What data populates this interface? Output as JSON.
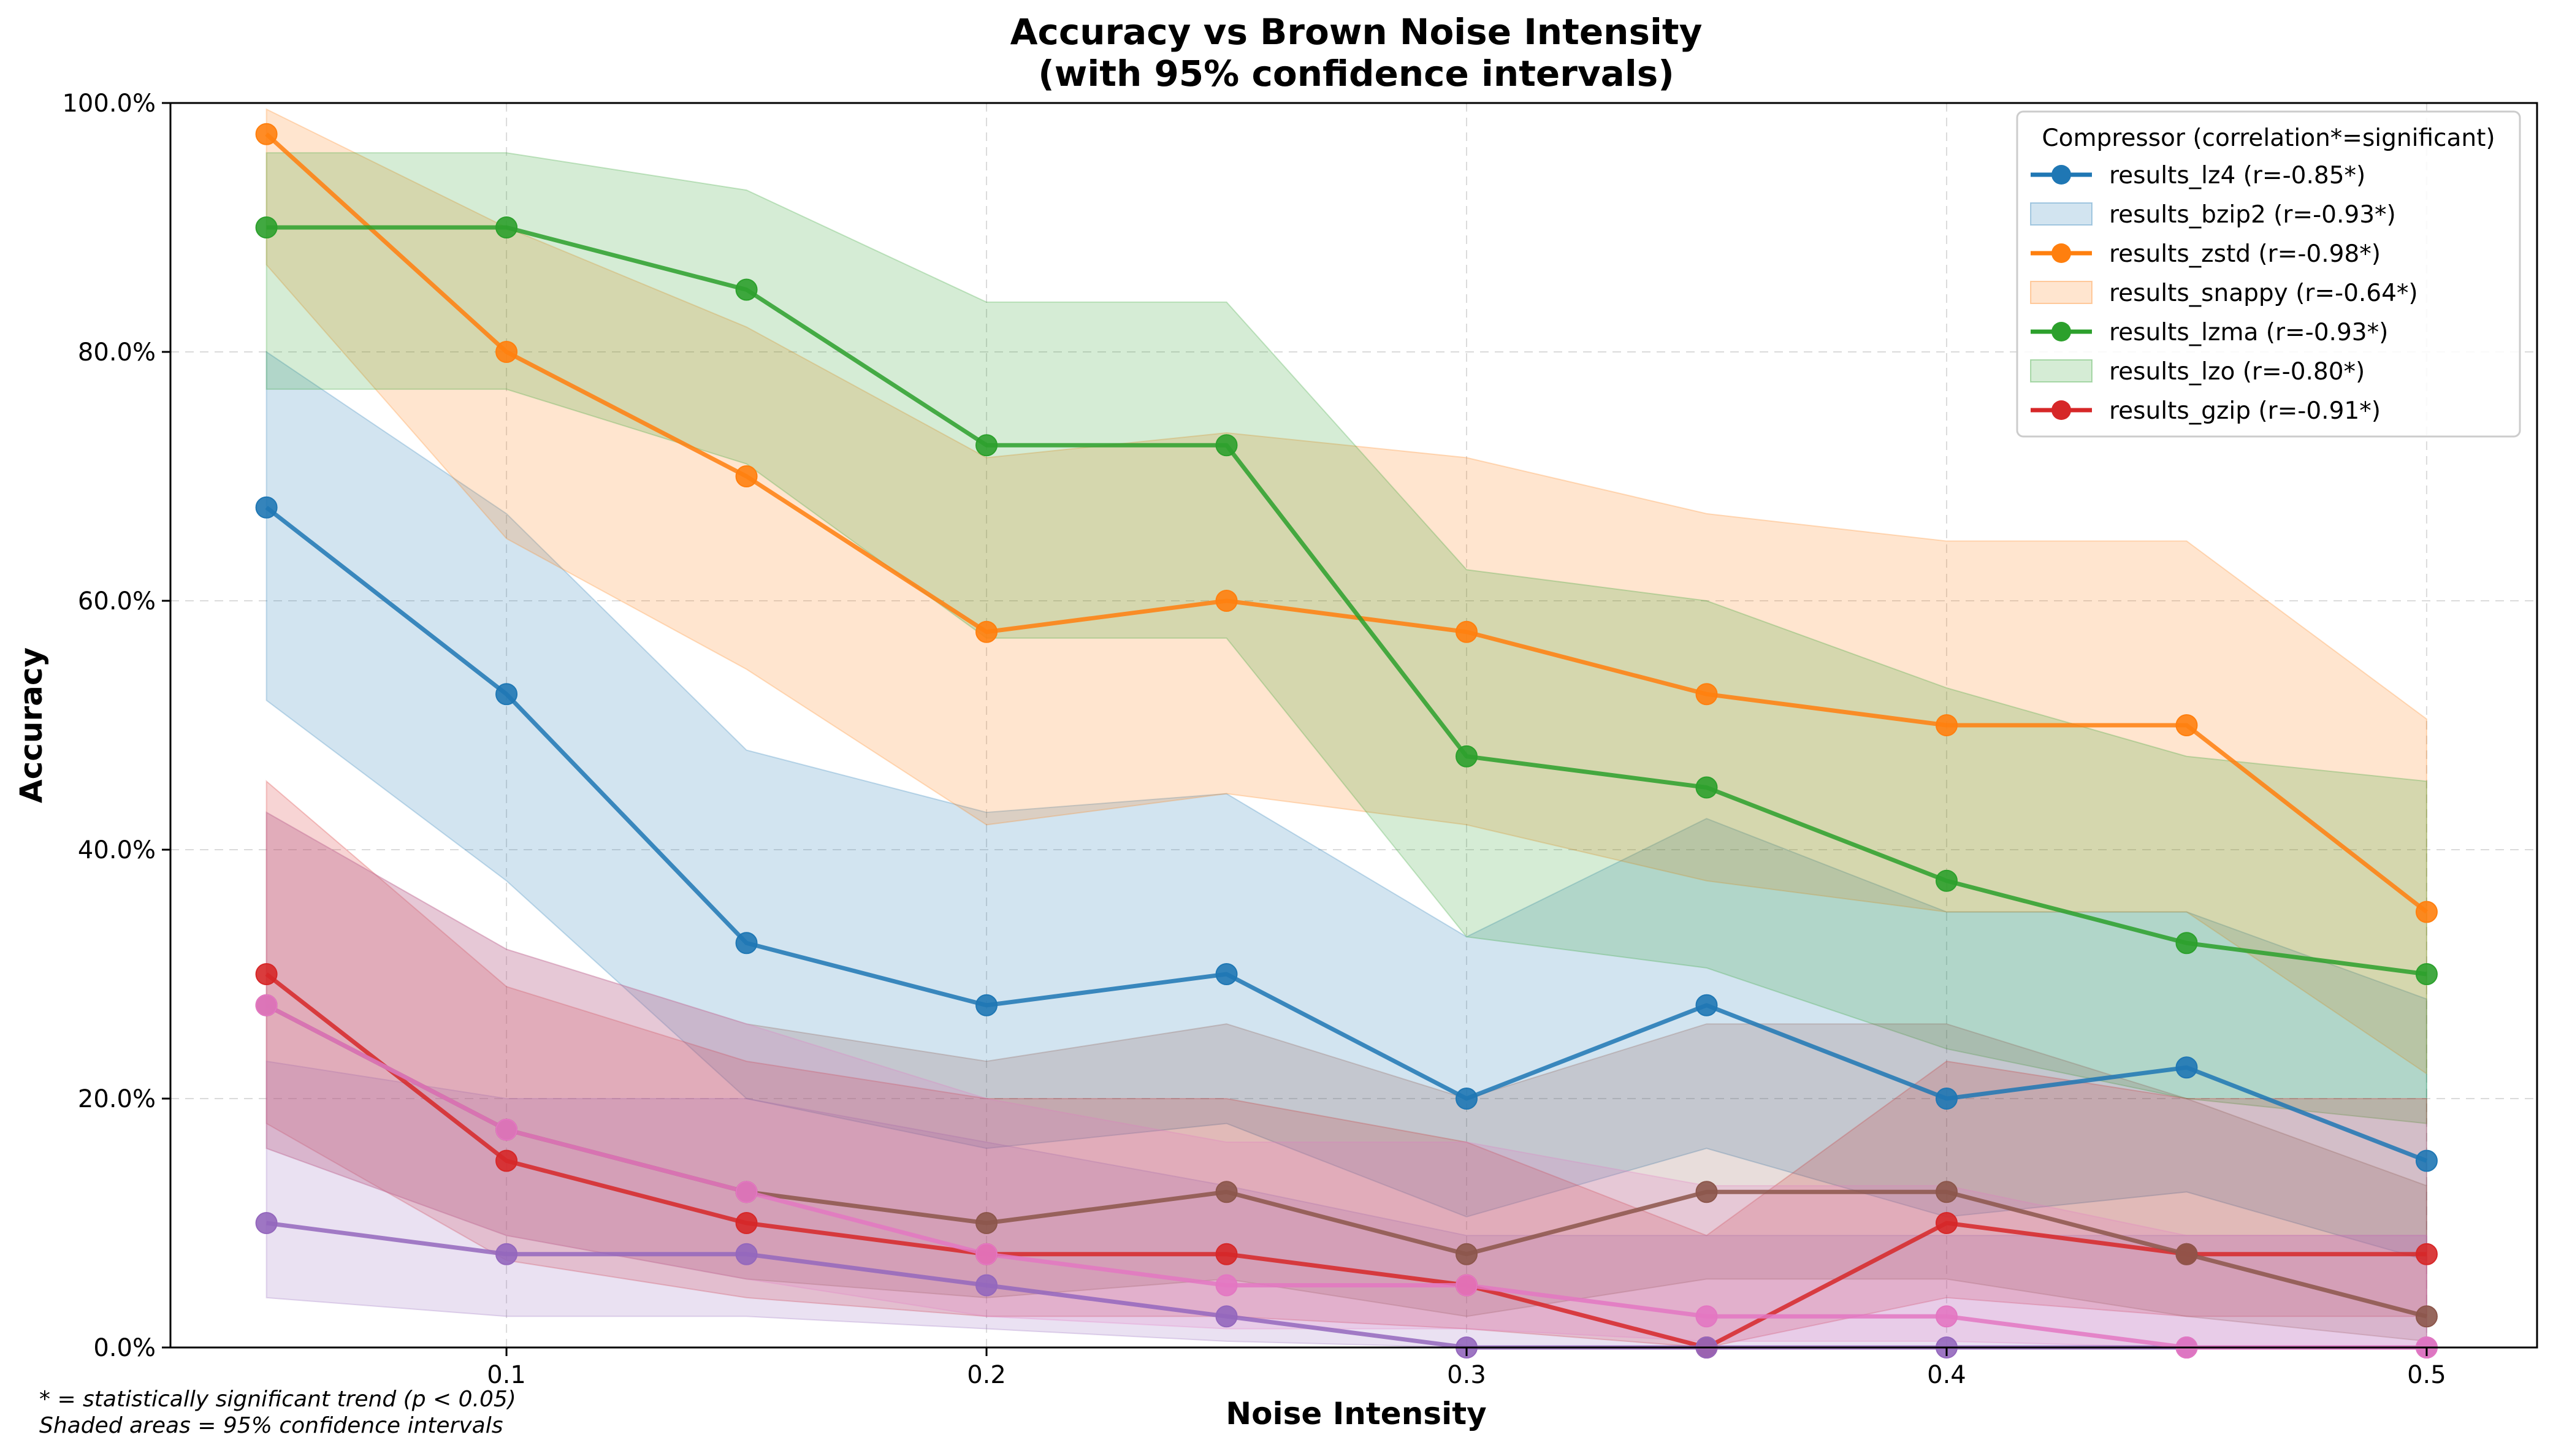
{
  "chart_data": {
    "type": "line",
    "title": "Accuracy vs Brown Noise Intensity",
    "subtitle": "(with 95% confidence intervals)",
    "xlabel": "Noise Intensity",
    "ylabel": "Accuracy",
    "xlim": [
      0.03,
      0.523
    ],
    "ylim": [
      0,
      100
    ],
    "x_ticks": [
      0.1,
      0.2,
      0.3,
      0.4,
      0.5
    ],
    "x_tick_labels": [
      "0.1",
      "0.2",
      "0.3",
      "0.4",
      "0.5"
    ],
    "y_ticks": [
      0,
      20,
      40,
      60,
      80,
      100
    ],
    "y_tick_labels": [
      "0.0%",
      "20.0%",
      "40.0%",
      "60.0%",
      "80.0%",
      "100.0%"
    ],
    "grid": true,
    "legend_placement": "top-right",
    "legend_title": "Compressor (correlation*=significant)",
    "x": [
      0.05,
      0.1,
      0.15,
      0.2,
      0.25,
      0.3,
      0.35,
      0.4,
      0.45,
      0.5
    ],
    "series": [
      {
        "color": "#1f77b4",
        "values": [
          67.5,
          52.5,
          32.5,
          27.5,
          30,
          20,
          27.5,
          20,
          22.5,
          15
        ],
        "ci_low": [
          52,
          37.5,
          20,
          16,
          18,
          10.5,
          16,
          10.5,
          12.5,
          7
        ],
        "ci_high": [
          80,
          67,
          48,
          43,
          44.5,
          33,
          42.5,
          35,
          35,
          28
        ],
        "line_legend": "results_lz4 (r=-0.85*)"
      },
      {
        "color": "#ff7f0e",
        "values": [
          97.5,
          80,
          70,
          57.5,
          60,
          57.5,
          52.5,
          50,
          50,
          35
        ],
        "ci_low": [
          87,
          65,
          54.5,
          42,
          44.5,
          42,
          37.5,
          35,
          35,
          22
        ],
        "ci_high": [
          99.5,
          90,
          82,
          71.5,
          73.5,
          71.5,
          67,
          64.8,
          64.8,
          50.5
        ],
        "line_legend": "results_zstd (r=-0.98*)"
      },
      {
        "color": "#2ca02c",
        "values": [
          90,
          90,
          85,
          72.5,
          72.5,
          47.5,
          45,
          37.5,
          32.5,
          30
        ],
        "ci_low": [
          77,
          77,
          71,
          57,
          57,
          33,
          30.5,
          24,
          20,
          18
        ],
        "ci_high": [
          96,
          96,
          93,
          84,
          84,
          62.5,
          60,
          53,
          47.5,
          45.5
        ],
        "line_legend": "results_lzma (r=-0.93*)"
      },
      {
        "color": "#d62728",
        "values": [
          30,
          15,
          10,
          7.5,
          7.5,
          5,
          0,
          10,
          7.5,
          7.5
        ],
        "ci_low": [
          18,
          7,
          4,
          2.5,
          2.5,
          1.5,
          0,
          4,
          2.5,
          2.5
        ],
        "ci_high": [
          45.5,
          29,
          23,
          20,
          20,
          16.5,
          9,
          23,
          20,
          20
        ],
        "line_legend": "results_gzip (r=-0.91*)"
      },
      {
        "color": "#9467bd",
        "values": [
          10,
          7.5,
          7.5,
          5,
          2.5,
          0,
          0,
          0,
          0,
          0
        ],
        "ci_low": [
          4,
          2.5,
          2.5,
          1.5,
          0.5,
          0,
          0,
          0,
          0,
          0
        ],
        "ci_high": [
          23,
          20,
          20,
          16.5,
          13,
          9,
          9,
          9,
          9,
          9
        ]
      },
      {
        "color": "#8c564b",
        "values": [
          27.5,
          17.5,
          12.5,
          10,
          12.5,
          7.5,
          12.5,
          12.5,
          7.5,
          2.5
        ],
        "ci_low": [
          16,
          9,
          5.5,
          4,
          5.5,
          2.5,
          5.5,
          5.5,
          2.5,
          0.5
        ],
        "ci_high": [
          43,
          32,
          26,
          23,
          26,
          20,
          26,
          26,
          20,
          13
        ]
      },
      {
        "color": "#e377c2",
        "values": [
          27.5,
          17.5,
          12.5,
          7.5,
          5,
          5,
          2.5,
          2.5,
          0,
          0
        ],
        "ci_low": [
          16,
          9,
          5.5,
          2.5,
          1.5,
          1.5,
          0.5,
          0.5,
          0,
          0
        ],
        "ci_high": [
          43,
          32,
          26,
          20,
          16.5,
          16.5,
          13,
          13,
          9,
          9
        ]
      }
    ],
    "legend_entries": [
      {
        "kind": "line",
        "color": "#1f77b4",
        "label": "results_lz4 (r=-0.85*)"
      },
      {
        "kind": "patch",
        "color": "#1f77b4",
        "label": "results_bzip2 (r=-0.93*)"
      },
      {
        "kind": "line",
        "color": "#ff7f0e",
        "label": "results_zstd (r=-0.98*)"
      },
      {
        "kind": "patch",
        "color": "#ff7f0e",
        "label": "results_snappy (r=-0.64*)"
      },
      {
        "kind": "line",
        "color": "#2ca02c",
        "label": "results_lzma (r=-0.93*)"
      },
      {
        "kind": "patch",
        "color": "#2ca02c",
        "label": "results_lzo (r=-0.80*)"
      },
      {
        "kind": "line",
        "color": "#d62728",
        "label": "results_gzip (r=-0.91*)"
      }
    ],
    "footnotes": [
      "* = statistically significant trend (p < 0.05)",
      "Shaded areas = 95% confidence intervals"
    ]
  }
}
